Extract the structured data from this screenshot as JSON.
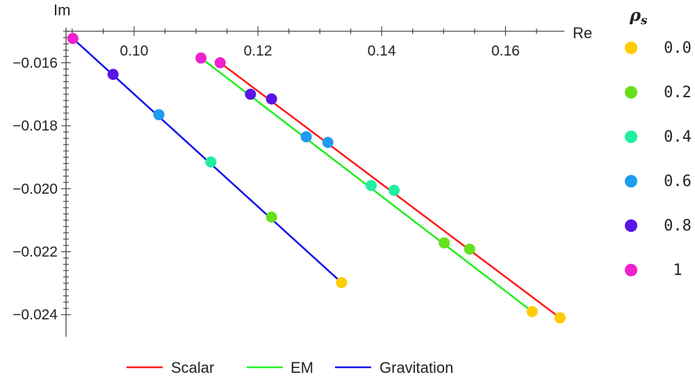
{
  "chart_data": {
    "type": "scatter",
    "xlabel": "Re",
    "ylabel": "Im",
    "xlim": [
      0.089,
      0.1695
    ],
    "ylim": [
      -0.0247,
      -0.015
    ],
    "x_ticks": [
      0.1,
      0.12,
      0.14,
      0.16
    ],
    "x_tick_labels": [
      "0.10",
      "0.12",
      "0.14",
      "0.16"
    ],
    "y_ticks": [
      -0.016,
      -0.018,
      -0.02,
      -0.022,
      -0.024
    ],
    "y_tick_labels": [
      "−0.016",
      "−0.018",
      "−0.020",
      "−0.022",
      "−0.024"
    ],
    "grid": false,
    "point_legend": {
      "title": "ρs",
      "placement": "right",
      "entries": [
        {
          "label": "0.0",
          "color": "#FFCC00"
        },
        {
          "label": "0.2",
          "color": "#66E01A"
        },
        {
          "label": "0.4",
          "color": "#1FF0A0"
        },
        {
          "label": "0.6",
          "color": "#1E9BF0"
        },
        {
          "label": "0.8",
          "color": "#5A14E6"
        },
        {
          "label": "1",
          "color": "#F020D0"
        }
      ]
    },
    "line_legend": {
      "placement": "bottom",
      "entries": [
        {
          "label": "Scalar",
          "color": "#FF1A1A"
        },
        {
          "label": "EM",
          "color": "#22EE22"
        },
        {
          "label": "Gravitation",
          "color": "#1414E6"
        }
      ]
    },
    "series": [
      {
        "name": "Scalar",
        "color": "#FF1A1A",
        "points": [
          {
            "rho": "1",
            "x": 0.1139,
            "y": -0.016
          },
          {
            "rho": "0.8",
            "x": 0.1222,
            "y": -0.01715
          },
          {
            "rho": "0.6",
            "x": 0.1313,
            "y": -0.01853
          },
          {
            "rho": "0.4",
            "x": 0.142,
            "y": -0.02005
          },
          {
            "rho": "0.2",
            "x": 0.1542,
            "y": -0.02192
          },
          {
            "rho": "0.0",
            "x": 0.1688,
            "y": -0.0241
          }
        ]
      },
      {
        "name": "EM",
        "color": "#22EE22",
        "points": [
          {
            "rho": "1",
            "x": 0.1108,
            "y": -0.01585
          },
          {
            "rho": "0.8",
            "x": 0.1188,
            "y": -0.017
          },
          {
            "rho": "0.6",
            "x": 0.1278,
            "y": -0.01835
          },
          {
            "rho": "0.4",
            "x": 0.1383,
            "y": -0.0199
          },
          {
            "rho": "0.2",
            "x": 0.1501,
            "y": -0.02172
          },
          {
            "rho": "0.0",
            "x": 0.1643,
            "y": -0.0239
          }
        ]
      },
      {
        "name": "Gravitation",
        "color": "#1414E6",
        "points": [
          {
            "rho": "1",
            "x": 0.0901,
            "y": -0.01523
          },
          {
            "rho": "0.8",
            "x": 0.0966,
            "y": -0.01637
          },
          {
            "rho": "0.6",
            "x": 0.104,
            "y": -0.01765
          },
          {
            "rho": "0.4",
            "x": 0.1124,
            "y": -0.01915
          },
          {
            "rho": "0.2",
            "x": 0.1222,
            "y": -0.0209
          },
          {
            "rho": "0.0",
            "x": 0.1335,
            "y": -0.02298
          }
        ]
      }
    ]
  }
}
